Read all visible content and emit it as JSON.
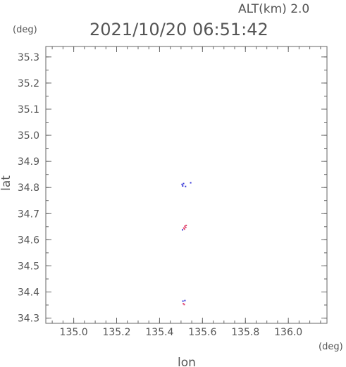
{
  "header": {
    "altitude_label": "ALT(km) 2.0",
    "timestamp": "2021/10/20 06:51:42"
  },
  "chart_data": {
    "type": "scatter",
    "title": "2021/10/20 06:51:42",
    "subtitle": "ALT(km) 2.0",
    "xlabel": "lon",
    "ylabel": "lat",
    "x_unit": "(deg)",
    "y_unit": "(deg)",
    "xlim": [
      134.87,
      136.18
    ],
    "ylim": [
      34.28,
      35.34
    ],
    "x_ticks": [
      135.0,
      135.2,
      135.4,
      135.6,
      135.8,
      136.0
    ],
    "x_tick_labels": [
      "135.0",
      "135.2",
      "135.4",
      "135.6",
      "135.8",
      "136.0"
    ],
    "y_ticks": [
      34.3,
      34.4,
      34.5,
      34.6,
      34.7,
      34.8,
      34.9,
      35.0,
      35.1,
      35.2,
      35.3
    ],
    "y_tick_labels": [
      "34.3",
      "34.4",
      "34.5",
      "34.6",
      "34.7",
      "34.8",
      "34.9",
      "35.0",
      "35.1",
      "35.2",
      "35.3"
    ],
    "grid": false,
    "colors": {
      "blue": "#3a3ad8",
      "red": "#e0446e",
      "axis": "#666666"
    },
    "points": [
      {
        "x": 135.505,
        "y": 34.812,
        "color": "#3a3ad8"
      },
      {
        "x": 135.508,
        "y": 34.806,
        "color": "#3a3ad8"
      },
      {
        "x": 135.512,
        "y": 34.815,
        "color": "#3a3ad8"
      },
      {
        "x": 135.521,
        "y": 34.804,
        "color": "#3a3ad8"
      },
      {
        "x": 135.545,
        "y": 34.818,
        "color": "#3a3ad8"
      },
      {
        "x": 135.507,
        "y": 34.638,
        "color": "#3a3ad8"
      },
      {
        "x": 135.513,
        "y": 34.645,
        "color": "#e0446e"
      },
      {
        "x": 135.518,
        "y": 34.652,
        "color": "#e0446e"
      },
      {
        "x": 135.522,
        "y": 34.647,
        "color": "#e0446e"
      },
      {
        "x": 135.524,
        "y": 34.655,
        "color": "#e0446e"
      },
      {
        "x": 135.516,
        "y": 34.641,
        "color": "#e0446e"
      },
      {
        "x": 135.509,
        "y": 34.365,
        "color": "#3a3ad8"
      },
      {
        "x": 135.518,
        "y": 34.367,
        "color": "#3a3ad8"
      },
      {
        "x": 135.511,
        "y": 34.355,
        "color": "#e0446e"
      },
      {
        "x": 135.515,
        "y": 34.352,
        "color": "#e0446e"
      }
    ]
  }
}
